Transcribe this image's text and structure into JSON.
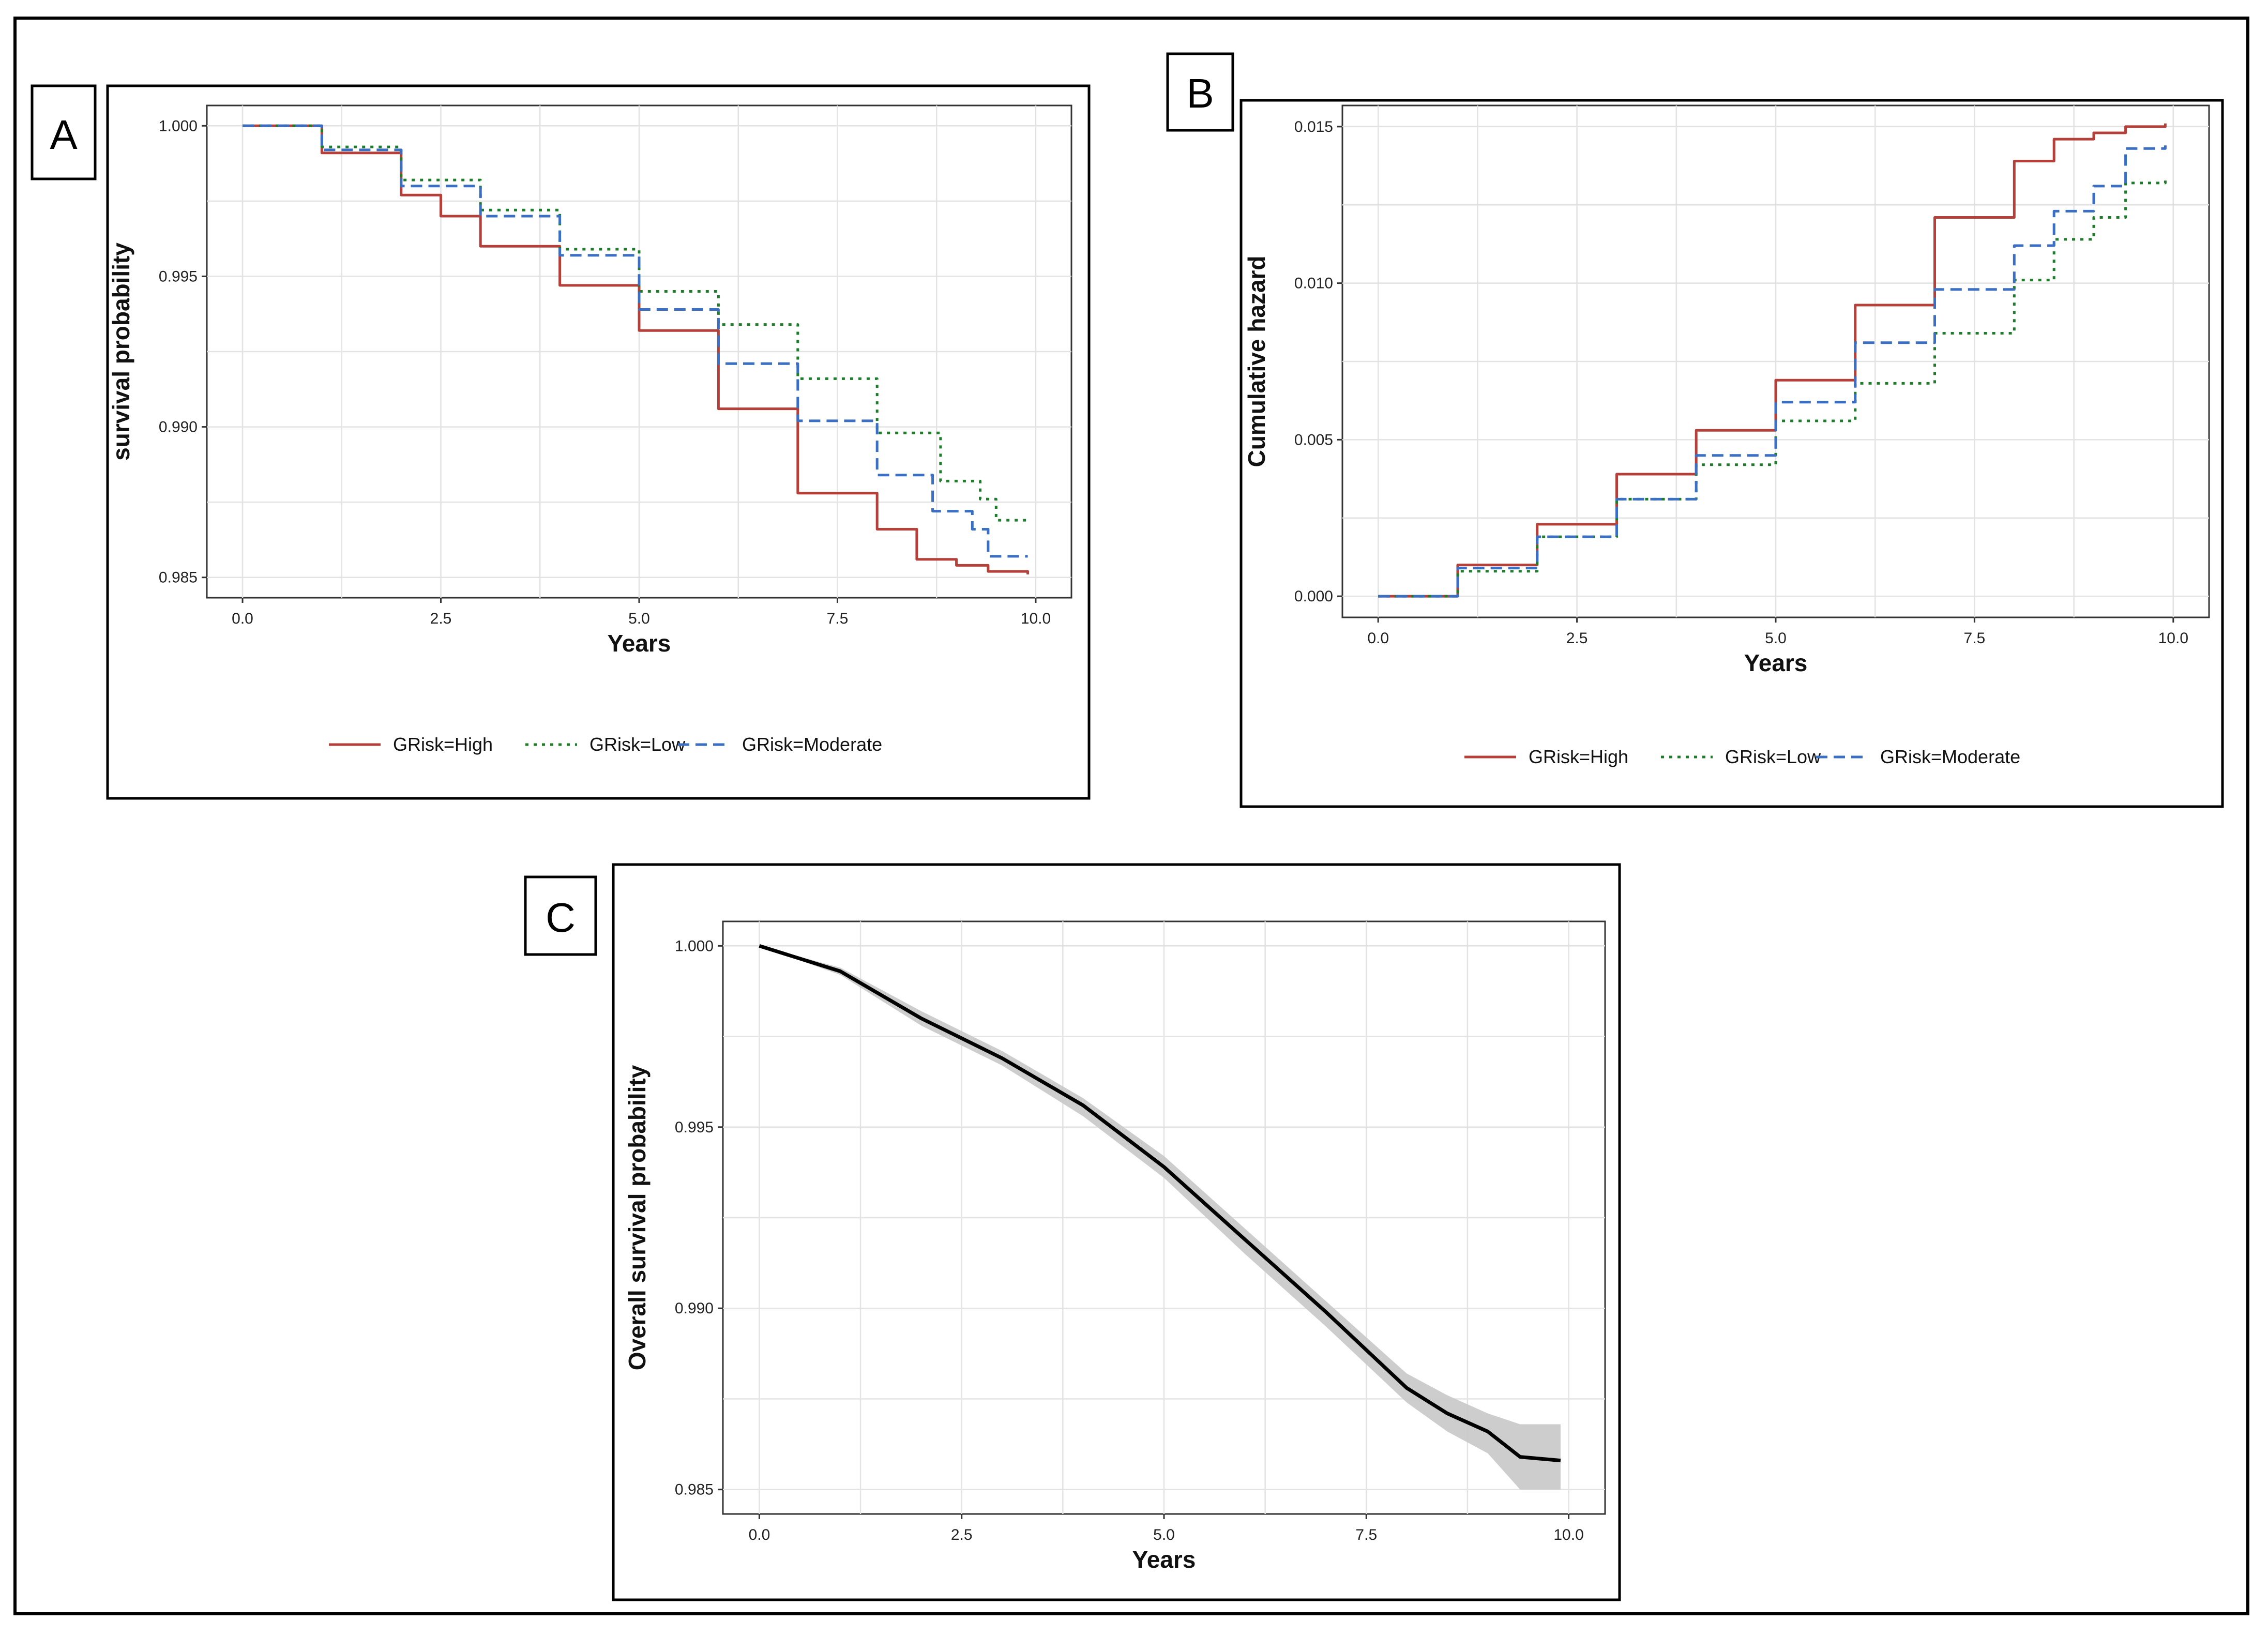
{
  "colors": {
    "high": "#b5403a",
    "low": "#1e7d2a",
    "moderate": "#3a6fc4",
    "overall": "#000000",
    "ci": "#c8c8c8"
  },
  "panels": {
    "A": {
      "label": "A"
    },
    "B": {
      "label": "B"
    },
    "C": {
      "label": "C"
    }
  },
  "legend": {
    "high": "GRisk=High",
    "low": "GRisk=Low",
    "moderate": "GRisk=Moderate"
  },
  "chart_data": [
    {
      "id": "A",
      "type": "line",
      "title": "",
      "xlabel": "Years",
      "ylabel": "survival probability",
      "xlim": [
        0,
        10
      ],
      "ylim": [
        0.985,
        1.0
      ],
      "xticks": [
        "0.0",
        "2.5",
        "5.0",
        "7.5",
        "10.0"
      ],
      "yticks": [
        "0.985",
        "0.990",
        "0.995",
        "1.000"
      ],
      "grid": true,
      "legend_position": "bottom",
      "series": [
        {
          "name": "GRisk=High",
          "key": "high",
          "x": [
            0,
            1,
            2,
            2.5,
            3,
            4,
            5,
            6,
            7,
            8,
            8.5,
            9,
            9.4,
            9.9
          ],
          "y": [
            1.0,
            0.9991,
            0.9977,
            0.997,
            0.996,
            0.9947,
            0.9932,
            0.9906,
            0.9878,
            0.9866,
            0.9856,
            0.9854,
            0.9852,
            0.9851
          ]
        },
        {
          "name": "GRisk=Low",
          "key": "low",
          "x": [
            0,
            1,
            2,
            3,
            4,
            5,
            6,
            7,
            8,
            8.8,
            9.3,
            9.5,
            9.9
          ],
          "y": [
            1.0,
            0.9993,
            0.9982,
            0.9972,
            0.9959,
            0.9945,
            0.9934,
            0.9916,
            0.9898,
            0.9882,
            0.9876,
            0.9869,
            0.9868
          ]
        },
        {
          "name": "GRisk=Moderate",
          "key": "moderate",
          "x": [
            0,
            1,
            2,
            3,
            4,
            5,
            6,
            7,
            8,
            8.7,
            9.2,
            9.4,
            9.9
          ],
          "y": [
            1.0,
            0.9992,
            0.998,
            0.997,
            0.9957,
            0.9939,
            0.9921,
            0.9902,
            0.9884,
            0.9872,
            0.9866,
            0.9857,
            0.9857
          ]
        }
      ]
    },
    {
      "id": "B",
      "type": "line",
      "title": "",
      "xlabel": "Years",
      "ylabel": "Cumulative hazard",
      "xlim": [
        0,
        10
      ],
      "ylim": [
        0,
        0.015
      ],
      "xticks": [
        "0.0",
        "2.5",
        "5.0",
        "7.5",
        "10.0"
      ],
      "yticks": [
        "0.000",
        "0.005",
        "0.010",
        "0.015"
      ],
      "grid": true,
      "legend_position": "bottom",
      "series": [
        {
          "name": "GRisk=High",
          "key": "high",
          "x": [
            0,
            1,
            2,
            3,
            4,
            5,
            6,
            7,
            8,
            8.5,
            9,
            9.4,
            9.9
          ],
          "y": [
            0,
            0.001,
            0.0023,
            0.0039,
            0.0053,
            0.0069,
            0.0093,
            0.0121,
            0.0139,
            0.0146,
            0.0148,
            0.015,
            0.0151
          ]
        },
        {
          "name": "GRisk=Low",
          "key": "low",
          "x": [
            0,
            1,
            2,
            3,
            4,
            5,
            6,
            7,
            8,
            8.5,
            9,
            9.4,
            9.9
          ],
          "y": [
            0,
            0.0008,
            0.0019,
            0.0031,
            0.0042,
            0.0056,
            0.0068,
            0.0084,
            0.0101,
            0.0114,
            0.0121,
            0.0132,
            0.0133
          ]
        },
        {
          "name": "GRisk=Moderate",
          "key": "moderate",
          "x": [
            0,
            1,
            2,
            3,
            4,
            5,
            6,
            7,
            8,
            8.5,
            9,
            9.4,
            9.9
          ],
          "y": [
            0,
            0.0009,
            0.0019,
            0.0031,
            0.0045,
            0.0062,
            0.0081,
            0.0098,
            0.0112,
            0.0123,
            0.0131,
            0.0143,
            0.0144
          ]
        }
      ]
    },
    {
      "id": "C",
      "type": "line",
      "title": "",
      "xlabel": "Years",
      "ylabel": "Overall survival probability",
      "xlim": [
        0,
        10
      ],
      "ylim": [
        0.985,
        1.0
      ],
      "xticks": [
        "0.0",
        "2.5",
        "5.0",
        "7.5",
        "10.0"
      ],
      "yticks": [
        "0.985",
        "0.990",
        "0.995",
        "1.000"
      ],
      "grid": true,
      "series": [
        {
          "name": "Overall",
          "key": "overall",
          "x": [
            0,
            1,
            2,
            3,
            4,
            5,
            6,
            7,
            8,
            8.5,
            9,
            9.4,
            9.9
          ],
          "y": [
            1.0,
            0.9993,
            0.998,
            0.9969,
            0.9956,
            0.9939,
            0.9919,
            0.9899,
            0.9878,
            0.9871,
            0.9866,
            0.9859,
            0.9858
          ],
          "ci_upper": [
            1.0,
            0.9994,
            0.9982,
            0.9971,
            0.9958,
            0.9942,
            0.9922,
            0.9902,
            0.9882,
            0.9876,
            0.9871,
            0.9868,
            0.9868
          ],
          "ci_lower": [
            1.0,
            0.9992,
            0.9978,
            0.9967,
            0.9953,
            0.9936,
            0.9915,
            0.9895,
            0.9874,
            0.9866,
            0.986,
            0.985,
            0.985
          ]
        }
      ]
    }
  ]
}
